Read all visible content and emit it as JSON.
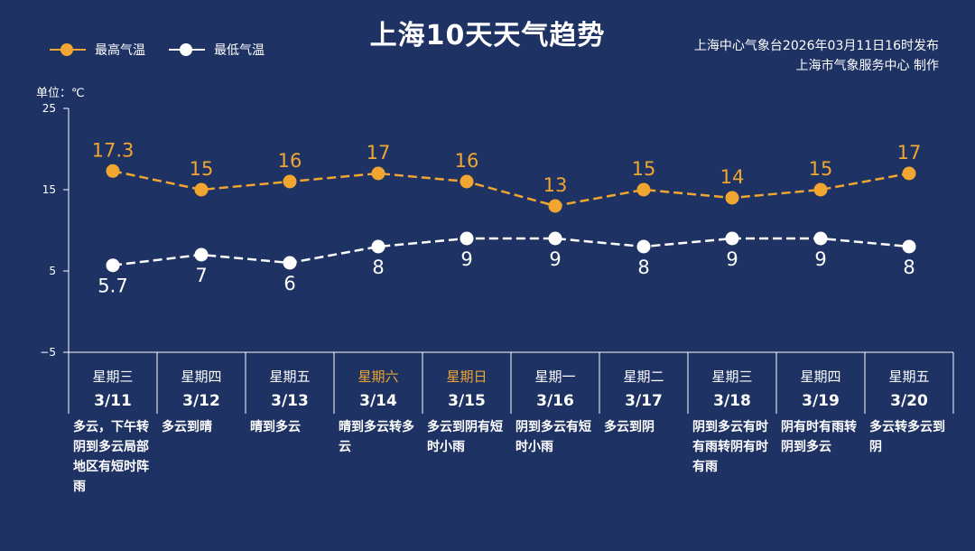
{
  "title": "上海10天天气趋势",
  "legend": {
    "high_label": "最高气温",
    "low_label": "最低气温"
  },
  "source": {
    "line1": "上海中心气象台2026年03月11日16时发布",
    "line2": "上海市气象服务中心 制作"
  },
  "unit_label": "单位：℃",
  "colors": {
    "background": "#1f3264",
    "high": "#f0a630",
    "low": "#ffffff",
    "weekend": "#f0a630",
    "axis": "#ffffff"
  },
  "days": [
    {
      "weekday": "星期三",
      "date": "3/11",
      "desc": "多云，下午转阴到多云局部地区有短时阵雨",
      "weekend": false
    },
    {
      "weekday": "星期四",
      "date": "3/12",
      "desc": "多云到晴",
      "weekend": false
    },
    {
      "weekday": "星期五",
      "date": "3/13",
      "desc": "晴到多云",
      "weekend": false
    },
    {
      "weekday": "星期六",
      "date": "3/14",
      "desc": "晴到多云转多云",
      "weekend": true
    },
    {
      "weekday": "星期日",
      "date": "3/15",
      "desc": "多云到阴有短时小雨",
      "weekend": true
    },
    {
      "weekday": "星期一",
      "date": "3/16",
      "desc": "阴到多云有短时小雨",
      "weekend": false
    },
    {
      "weekday": "星期二",
      "date": "3/17",
      "desc": "多云到阴",
      "weekend": false
    },
    {
      "weekday": "星期三",
      "date": "3/18",
      "desc": "阴到多云有时有雨转阴有时有雨",
      "weekend": false
    },
    {
      "weekday": "星期四",
      "date": "3/19",
      "desc": "阴有时有雨转阴到多云",
      "weekend": false
    },
    {
      "weekday": "星期五",
      "date": "3/20",
      "desc": "多云转多云到阴",
      "weekend": false
    }
  ],
  "chart_data": {
    "type": "line",
    "title": "上海10天天气趋势",
    "xlabel": "",
    "ylabel": "单位：℃",
    "categories": [
      "3/11",
      "3/12",
      "3/13",
      "3/14",
      "3/15",
      "3/16",
      "3/17",
      "3/18",
      "3/19",
      "3/20"
    ],
    "ylim": [
      -5,
      25
    ],
    "yticks": [
      -5,
      5,
      15,
      25
    ],
    "ytick_labels": [
      "−5",
      "5",
      "15",
      "25"
    ],
    "grid": false,
    "legend_position": "top-left",
    "series": [
      {
        "name": "最高气温",
        "values": [
          17.3,
          15,
          16,
          17,
          16,
          13,
          15,
          14,
          15,
          17
        ],
        "labels": [
          "17.3",
          "15",
          "16",
          "17",
          "16",
          "13",
          "15",
          "14",
          "15",
          "17"
        ],
        "color": "#f0a630",
        "style": "dashed"
      },
      {
        "name": "最低气温",
        "values": [
          5.7,
          7,
          6,
          8,
          9,
          9,
          8,
          9,
          9,
          8
        ],
        "labels": [
          "5.7",
          "7",
          "6",
          "8",
          "9",
          "9",
          "8",
          "9",
          "9",
          "8"
        ],
        "color": "#ffffff",
        "style": "dashed"
      }
    ]
  }
}
